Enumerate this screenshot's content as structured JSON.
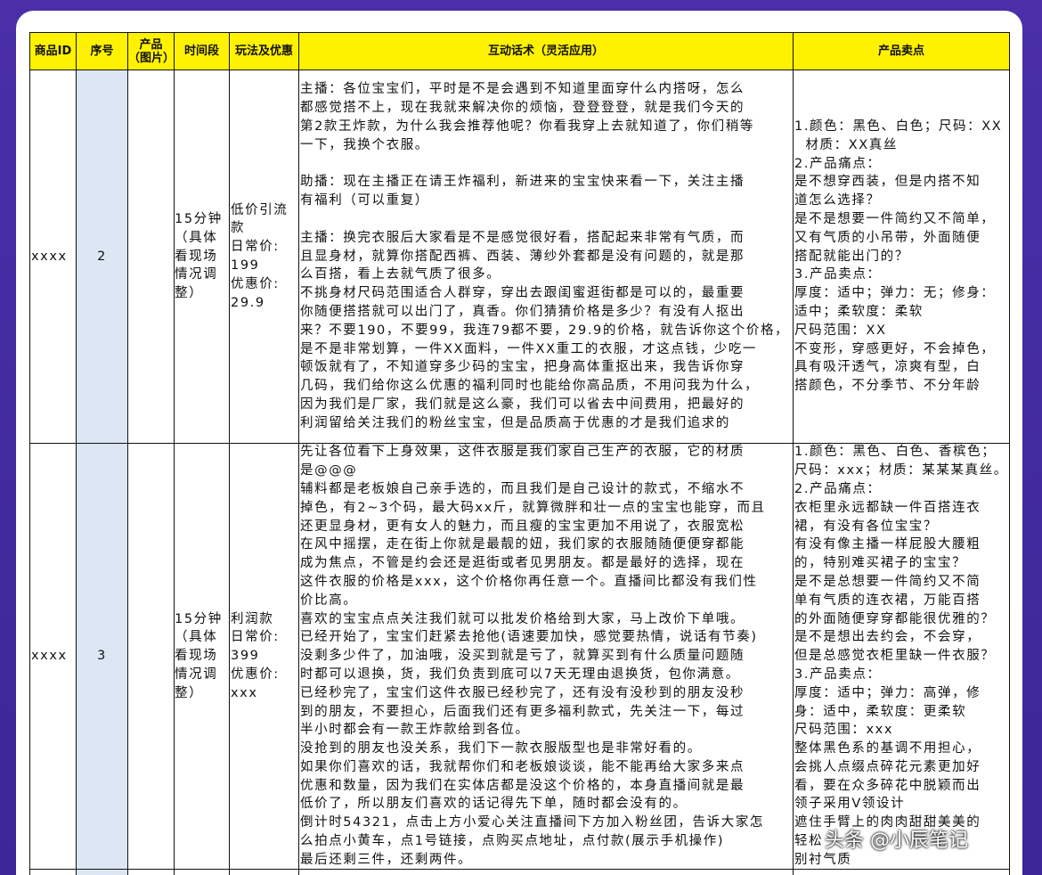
{
  "table": {
    "headers": [
      [
        "商品ID"
      ],
      [
        "序号"
      ],
      [
        "产品",
        "（图片）"
      ],
      [
        "时间段"
      ],
      [
        "玩法及优惠"
      ],
      [
        "互动话术（灵活应用）"
      ],
      [
        "产品卖点"
      ]
    ],
    "rows": [
      {
        "id": "xxxx",
        "no": "2",
        "time": [
          "15分钟",
          "（具体",
          "看现场",
          "情况调",
          "整）"
        ],
        "offer": [
          "低价引流",
          "款",
          "日常价:",
          "199",
          "优惠价:",
          "29.9"
        ],
        "script": [
          [
            "主播：各位宝宝们，平时是不是会遇到不知道里面穿什么内搭呀，怎么",
            "都感觉搭不上，现在我就来解决你的烦恼，登登登登，就是我们今天的",
            "第2款王炸款，为什么我会推荐他呢？你看我穿上去就知道了，你们稍等",
            "一下，我换个衣服。"
          ],
          [
            "助播：现在主播正在请王炸福利，新进来的宝宝快来看一下，关注主播",
            "有福利（可以重复）"
          ],
          [
            "主播：换完衣服后大家看是不是感觉很好看，搭配起来非常有气质，而",
            "且显身材，就算你搭配西裤、西装、薄纱外套都是没有问题的，就是那",
            "么百搭，看上去就气质了很多。",
            "不挑身材尺码范围适合人群穿，穿出去跟闺蜜逛街都是可以的，最重要",
            "你随便搭搭就可以出门了，真香。你们猜猜价格是多少？有没有人抠出",
            "来？不要190，不要99，我连79都不要，29.9的价格，就告诉你这个价格，",
            "是不是非常划算，一件XX面料，一件XX重工的衣服，才这点钱，少吃一",
            "顿饭就有了，不知道穿多少码的宝宝，把身高体重抠出来，我告诉你穿",
            "几码，我们给你这么优惠的福利同时也能给你高品质，不用问我为什么，",
            "因为我们是厂家，我们就是这么豪，我们可以省去中间费用，把最好的",
            "利润留给关注我们的粉丝宝宝，但是品质高于优惠的才是我们追求的"
          ]
        ],
        "points": [
          "1.颜色：黑色、白色；尺码：XX",
          "  材质：XX真丝",
          "2.产品痛点：",
          "是不想穿西装，但是内搭不知",
          "道怎么选择？",
          "是不是想要一件简约又不简单，",
          "又有气质的小吊带，外面随便",
          "搭配就能出门的？",
          "3.产品卖点：",
          "厚度：适中；弹力：无；修身：",
          "适中；柔软度：柔软",
          "尺码范围：XX",
          "不变形，穿感更好，不会掉色，",
          "具有吸汗透气，凉爽有型，白",
          "搭颜色，不分季节、不分年龄"
        ]
      },
      {
        "id": "xxxx",
        "no": "3",
        "time": [
          "15分钟",
          "（具体",
          "看现场",
          "情况调",
          "整）"
        ],
        "offer": [
          "利润款",
          "日常价:",
          "399",
          "优惠价:",
          "xxx"
        ],
        "script": [
          [
            "先让各位看下上身效果，这件衣服是我们家自己生产的衣服，它的材质",
            "是@@@",
            "辅料都是老板娘自己亲手选的，而且我们是自己设计的款式，不缩水不",
            "掉色，有2~3个码，最大码xx斤，就算微胖和壮一点的宝宝也能穿，而且",
            "还更显身材，更有女人的魅力，而且瘦的宝宝更加不用说了，衣服宽松",
            "在风中摇摆，走在街上你就是最靓的妞，我们家的衣服随随便便穿都能",
            "成为焦点，不管是约会还是逛街或者见男朋友。都是最好的选择，现在",
            "这件衣服的价格是xxx，这个价格你再任意一个。直播间比都没有我们性",
            "价比高。",
            "喜欢的宝宝点点关注我们就可以批发价格给到大家，马上改价下单哦。",
            "已经开始了，宝宝们赶紧去抢他(语速要加快，感觉要热情，说话有节奏)",
            "没剩多少件了，加油哦，没买到就是亏了，就算买到有什么质量问题随",
            "时都可以退换，货，我们负责到底可以7天无理由退换货，包你满意。",
            "已经秒完了，宝宝们这件衣服已经秒完了，还有没有没秒到的朋友没秒",
            "到的朋友，不要担心，后面我们还有更多福利款式，先关注一下，每过",
            "半小时都会有一款王炸款给到各位。",
            "没抢到的朋友也没关系，我们下一款衣服版型也是非常好看的。",
            "如果你们喜欢的话，我就帮你们和老板娘谈谈，能不能再给大家多来点",
            "优惠和数量，因为我们在实体店都是没这个价格的，本身直播间就是最",
            "低价了，所以朋友们喜欢的话记得先下单，随时都会没有的。",
            "倒计时54321，点击上方小爱心关注直播间下方加入粉丝团，告诉大家怎",
            "么拍点小黄车，点1号链接，点购买点地址，点付款(展示手机操作)",
            "最后还剩三件，还剩两件。"
          ]
        ],
        "points": [
          "1.颜色：黑色、白色、香槟色；",
          "尺码：xxx；材质：某某某真丝。",
          "2.产品痛点：",
          "衣柜里永远都缺一件百搭连衣",
          "裙，有没有各位宝宝？",
          "有没有像主播一样屁股大腰粗",
          "的，特别难买裙子的宝宝？",
          "是不是总想要一件简约又不简",
          "单有气质的连衣裙，万能百搭",
          "的外面随便穿穿都能很优雅的？",
          "是不是想出去约会，不会穿，",
          "但是总感觉衣柜里缺一件衣服？",
          "3.产品卖点：",
          "厚度：适中；弹力：高弹，修",
          "身：适中，柔软度：更柔软",
          "尺码范围：xxx",
          "整体黑色系的基调不用担心，",
          "会挑人点缀点碎花元素更加好",
          "看，要在众多碎花中脱颖而出",
          "领子采用V领设计",
          "遮住手臂上的肉肉甜甜美美的",
          "轻松",
          "别衬气质"
        ]
      }
    ]
  },
  "watermark": "头条 @小辰笔记"
}
